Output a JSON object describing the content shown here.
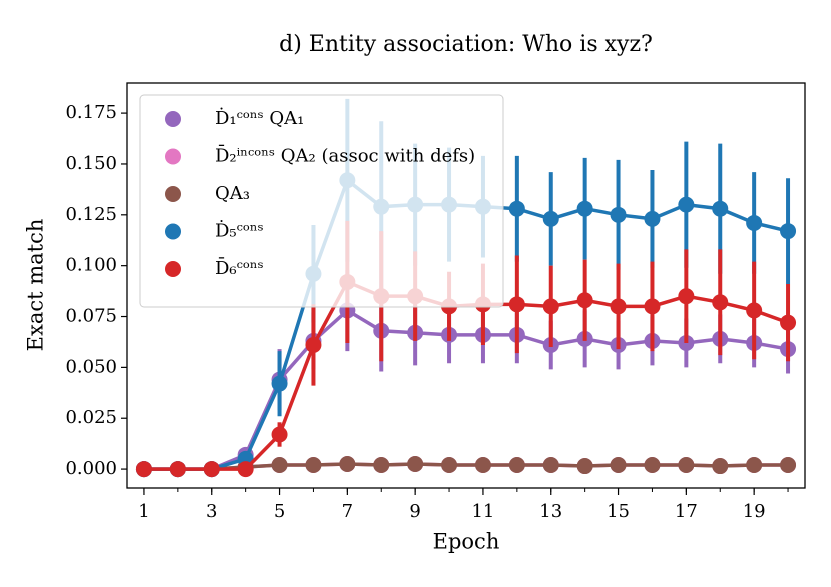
{
  "chart_data": {
    "type": "line",
    "title": "d) Entity association: Who is xyz?",
    "xlabel": "Epoch",
    "ylabel": "Exact match",
    "x": [
      1,
      2,
      3,
      4,
      5,
      6,
      7,
      8,
      9,
      10,
      11,
      12,
      13,
      14,
      15,
      16,
      17,
      18,
      19,
      20
    ],
    "xlim": [
      0.5,
      20.5
    ],
    "xticks": [
      1,
      3,
      5,
      7,
      9,
      11,
      13,
      15,
      17,
      19
    ],
    "ylim": [
      -0.0093,
      0.1898
    ],
    "yticks": [
      {
        "value": 0,
        "label": "0.000"
      },
      {
        "value": 0.025,
        "label": "0.025"
      },
      {
        "value": 0.05,
        "label": "0.050"
      },
      {
        "value": 0.075,
        "label": "0.075"
      },
      {
        "value": 0.1,
        "label": "0.100"
      },
      {
        "value": 0.125,
        "label": "0.125"
      },
      {
        "value": 0.15,
        "label": "0.150"
      },
      {
        "value": 0.175,
        "label": "0.175"
      }
    ],
    "legend": "upper left",
    "series": [
      {
        "name": "Ḋ₁ᶜᵒⁿˢ QA₁",
        "color": "#9467bd",
        "values": [
          0,
          0,
          0,
          0.007,
          0.044,
          0.063,
          0.078,
          0.068,
          0.067,
          0.066,
          0.066,
          0.066,
          0.061,
          0.064,
          0.061,
          0.063,
          0.062,
          0.064,
          0.062,
          0.059
        ],
        "errors": [
          0.001,
          0.001,
          0.001,
          0.003,
          0.015,
          0.014,
          0.02,
          0.02,
          0.016,
          0.014,
          0.014,
          0.014,
          0.012,
          0.014,
          0.012,
          0.012,
          0.012,
          0.012,
          0.012,
          0.012
        ]
      },
      {
        "name": "D̄₂ⁱⁿᶜᵒⁿˢ QA₂ (assoc with defs)",
        "color": "#e377c2",
        "values": [
          0,
          0,
          0,
          0.001,
          0.002,
          0.002,
          0.0025,
          0.002,
          0.0025,
          0.002,
          0.002,
          0.002,
          0.002,
          0.0015,
          0.002,
          0.002,
          0.002,
          0.0015,
          0.002,
          0.002
        ],
        "errors": [
          0.001,
          0.001,
          0.001,
          0.001,
          0.001,
          0.001,
          0.001,
          0.001,
          0.001,
          0.001,
          0.001,
          0.001,
          0.001,
          0.001,
          0.001,
          0.001,
          0.001,
          0.001,
          0.001,
          0.001
        ]
      },
      {
        "name": "QA₃",
        "color": "#8c564b",
        "values": [
          0,
          0,
          0,
          0.001,
          0.002,
          0.002,
          0.0025,
          0.002,
          0.0025,
          0.002,
          0.002,
          0.002,
          0.002,
          0.0015,
          0.002,
          0.002,
          0.002,
          0.0015,
          0.002,
          0.002
        ],
        "errors": [
          0.001,
          0.001,
          0.001,
          0.001,
          0.001,
          0.001,
          0.001,
          0.001,
          0.001,
          0.001,
          0.001,
          0.001,
          0.001,
          0.001,
          0.001,
          0.001,
          0.001,
          0.001,
          0.001,
          0.001
        ]
      },
      {
        "name": "Ḋ₅ᶜᵒⁿˢ",
        "color": "#1f77b4",
        "values": [
          0,
          0,
          0,
          0.005,
          0.042,
          0.096,
          0.142,
          0.129,
          0.13,
          0.13,
          0.129,
          0.128,
          0.123,
          0.128,
          0.125,
          0.123,
          0.13,
          0.128,
          0.121,
          0.117
        ],
        "errors": [
          0.001,
          0.001,
          0.001,
          0.003,
          0.016,
          0.024,
          0.04,
          0.042,
          0.03,
          0.028,
          0.025,
          0.026,
          0.023,
          0.025,
          0.027,
          0.024,
          0.031,
          0.032,
          0.025,
          0.026
        ]
      },
      {
        "name": "D̄₆ᶜᵒⁿˢ",
        "color": "#d62728",
        "values": [
          0,
          0,
          0,
          0,
          0.017,
          0.061,
          0.092,
          0.085,
          0.085,
          0.08,
          0.081,
          0.081,
          0.08,
          0.083,
          0.08,
          0.08,
          0.085,
          0.082,
          0.078,
          0.072
        ],
        "errors": [
          0.001,
          0.001,
          0.001,
          0.001,
          0.006,
          0.02,
          0.03,
          0.032,
          0.022,
          0.017,
          0.02,
          0.024,
          0.02,
          0.02,
          0.021,
          0.022,
          0.023,
          0.026,
          0.024,
          0.019
        ]
      }
    ]
  }
}
